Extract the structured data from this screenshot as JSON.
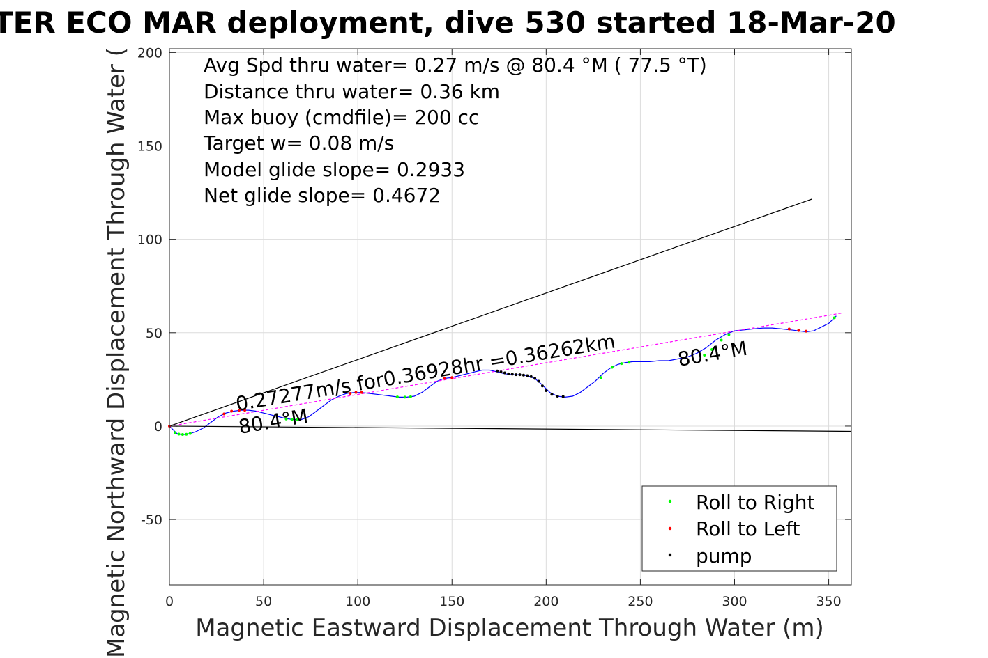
{
  "chart_data": {
    "type": "line",
    "title": "TER ECO MAR deployment, dive 530 started 18-Mar-20",
    "xlabel": "Magnetic Eastward Displacement Through Water (m)",
    "ylabel": "Magnetic Northward Displacement Through Water (",
    "xlim": [
      0,
      362
    ],
    "ylim": [
      -85,
      202
    ],
    "xticks": [
      "0",
      "50",
      "100",
      "150",
      "200",
      "250",
      "300",
      "350"
    ],
    "yticks": [
      "-50",
      "0",
      "50",
      "100",
      "150",
      "200"
    ],
    "xtick_values": [
      0,
      50,
      100,
      150,
      200,
      250,
      300,
      350
    ],
    "ytick_values": [
      -50,
      0,
      50,
      100,
      150,
      200
    ],
    "grid": true,
    "stats": [
      "Avg Spd thru water=  0.27 m/s @  80.4 °M ( 77.5 °T)",
      "Distance thru water=  0.36 km",
      "Max buoy (cmdfile)= 200 cc",
      "Target w= 0.08 m/s",
      "Model glide slope= 0.2933",
      "Net glide slope= 0.4672"
    ],
    "annotations": {
      "track_label": "0.27277m/s for0.36928hr =0.36262km",
      "heading_start": "80.4°M",
      "heading_end": "80.4°M"
    },
    "legend": {
      "placement": "bottom-right",
      "entries": [
        {
          "label": "Roll to Right",
          "color": "#00ff00"
        },
        {
          "label": "Roll to Left",
          "color": "#ff0000"
        },
        {
          "label": "pump",
          "color": "#000000"
        }
      ]
    },
    "series": [
      {
        "role": "track",
        "color": "#0000ff",
        "x": [
          0,
          2,
          4,
          6,
          8,
          11,
          14,
          18,
          22,
          26,
          30,
          34,
          38,
          42,
          46,
          50,
          54,
          58,
          62,
          66,
          70,
          74,
          78,
          82,
          86,
          90,
          94,
          98,
          102,
          106,
          110,
          114,
          118,
          122,
          126,
          130,
          134,
          138,
          142,
          146,
          150,
          154,
          158,
          162,
          166,
          170,
          174,
          178,
          182,
          186,
          190,
          194,
          198,
          202,
          206,
          210,
          214,
          218,
          222,
          226,
          230,
          234,
          238,
          242,
          246,
          250,
          255,
          260,
          265,
          270,
          275,
          280,
          285,
          290,
          295,
          300,
          305,
          310,
          315,
          320,
          325,
          330,
          334,
          338,
          342,
          346,
          350,
          354
        ],
        "y": [
          0,
          -2,
          -4,
          -4.5,
          -4.5,
          -4,
          -3,
          -1,
          2,
          5,
          7,
          8,
          8.5,
          8.5,
          8,
          7,
          6,
          5,
          4,
          3.5,
          3.5,
          5,
          8,
          11,
          14,
          16,
          17.5,
          18,
          18,
          17.5,
          17,
          16.5,
          16,
          15.5,
          15.5,
          16,
          18,
          21,
          24,
          25.5,
          26,
          27,
          28,
          29,
          30,
          30,
          29,
          28,
          27.5,
          27.5,
          27,
          25.5,
          22,
          18,
          16,
          15.5,
          16,
          18,
          21,
          24,
          28,
          31,
          33,
          34,
          34.5,
          34.5,
          34.5,
          35,
          35,
          36,
          37,
          39,
          42,
          46,
          49,
          51,
          51.5,
          52,
          52.5,
          52.5,
          52,
          51.5,
          51,
          50.5,
          51,
          53,
          55,
          59
        ]
      },
      {
        "role": "net-displacement",
        "color": "#ff00ff",
        "x": [
          0,
          357
        ],
        "y": [
          0,
          60.5
        ]
      },
      {
        "role": "heading-line-upper",
        "color": "#000000",
        "x": [
          0,
          341
        ],
        "y": [
          0,
          121.5
        ]
      },
      {
        "role": "heading-line-lower",
        "color": "#000000",
        "x": [
          0,
          362
        ],
        "y": [
          0,
          -2.8
        ]
      }
    ],
    "markers": {
      "roll_right": {
        "color": "#00ff00",
        "x": [
          3,
          5,
          7,
          9,
          11,
          62,
          65,
          68,
          121,
          125,
          128,
          229,
          235,
          240,
          244,
          284,
          288,
          293,
          297,
          353
        ],
        "y": [
          -3.5,
          -4.3,
          -4.5,
          -4.4,
          -4,
          3.8,
          3.5,
          3.5,
          15.6,
          15.5,
          15.7,
          26,
          31.5,
          33.5,
          34.2,
          38,
          41,
          46,
          49,
          58
        ]
      },
      "roll_left": {
        "color": "#ff0000",
        "x": [
          0,
          29,
          33,
          37,
          40,
          96,
          99,
          102,
          146,
          150,
          329,
          334,
          338
        ],
        "y": [
          0,
          6.5,
          8,
          8.5,
          8.5,
          17.5,
          18,
          18,
          25.5,
          26,
          52,
          51.2,
          50.8
        ]
      },
      "pump": {
        "color": "#000000",
        "x": [
          174,
          176,
          178,
          180,
          182,
          184,
          186,
          188,
          190,
          192,
          194,
          196,
          198,
          200,
          203,
          206,
          209
        ],
        "y": [
          29.5,
          29,
          28.5,
          28,
          27.8,
          27.5,
          27.5,
          27.3,
          27,
          26.5,
          25.5,
          24,
          21.5,
          19,
          17,
          16,
          15.8
        ]
      }
    }
  }
}
